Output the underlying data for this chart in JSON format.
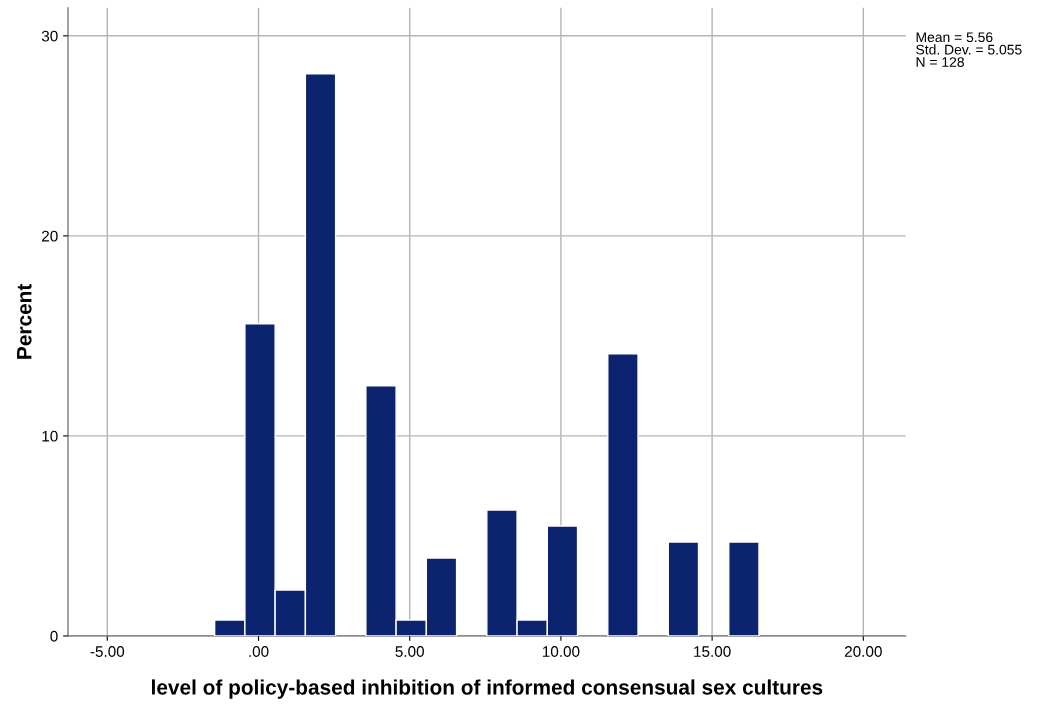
{
  "chart_data": {
    "type": "histogram",
    "xlabel": "level of policy-based inhibition of informed consensual sex cultures",
    "ylabel": "Percent",
    "bins": [
      -1.45,
      -0.45,
      0.55,
      1.55,
      2.55,
      3.55,
      4.55,
      5.55,
      6.55,
      7.55,
      8.55,
      9.55,
      10.55,
      11.55,
      12.55,
      13.55,
      14.55,
      15.55,
      16.55
    ],
    "values": [
      0.8,
      15.6,
      2.3,
      28.1,
      0,
      12.5,
      0.8,
      3.9,
      0,
      6.3,
      0.8,
      5.5,
      0,
      14.1,
      0,
      4.7,
      0,
      4.7
    ],
    "color": "#0c2470",
    "xlim": [
      -6.3,
      21.4
    ],
    "ylim": [
      0,
      31.4
    ],
    "xticks": [
      {
        "value": -5,
        "label": "-5.00"
      },
      {
        "value": 0,
        "label": ".00"
      },
      {
        "value": 5,
        "label": "5.00"
      },
      {
        "value": 10,
        "label": "10.00"
      },
      {
        "value": 15,
        "label": "15.00"
      },
      {
        "value": 20,
        "label": "20.00"
      }
    ],
    "yticks": [
      0,
      10,
      20,
      30
    ],
    "grid": true,
    "annotations": [
      "Mean = 5.56\nStd. Dev. = 5.055\nN = 128"
    ]
  }
}
